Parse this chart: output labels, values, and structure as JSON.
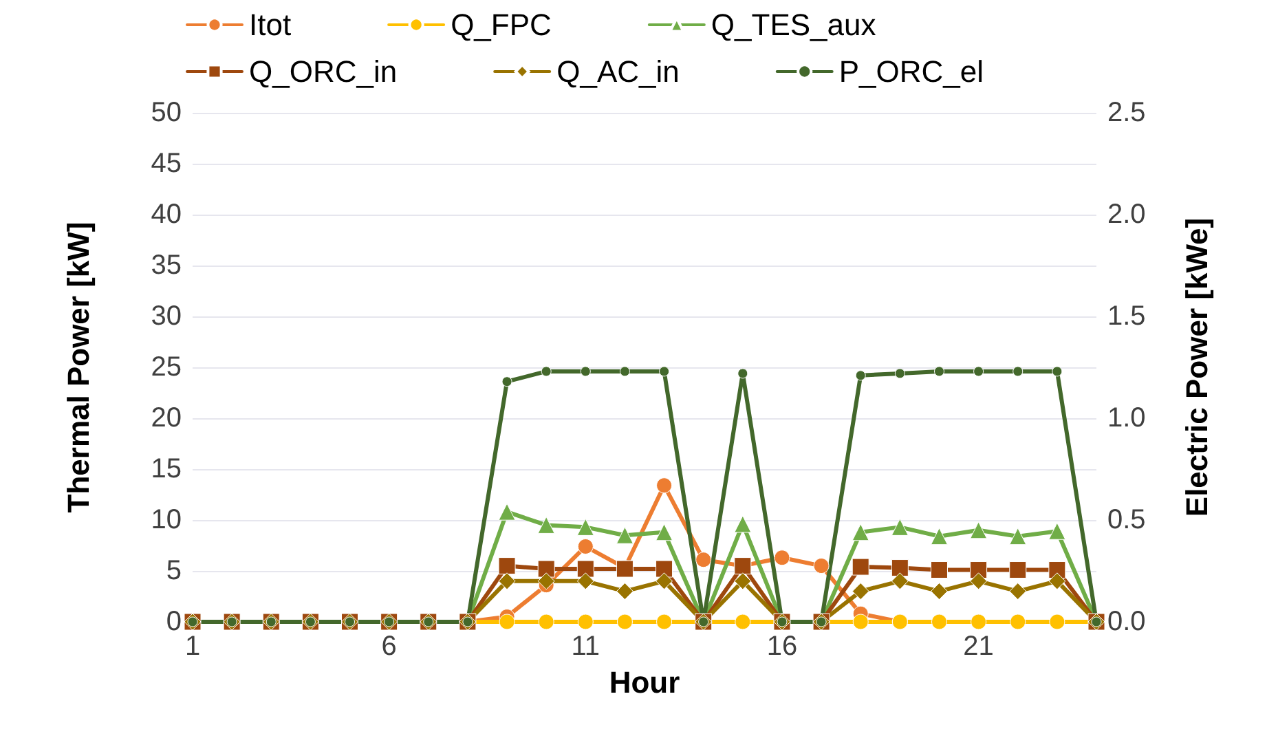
{
  "chart_data": {
    "type": "line",
    "xlabel": "Hour",
    "ylabel": "Thermal Power [kW]",
    "y2label": "Electric Power [kWe]",
    "x": [
      1,
      2,
      3,
      4,
      5,
      6,
      7,
      8,
      9,
      10,
      11,
      12,
      13,
      14,
      15,
      16,
      17,
      18,
      19,
      20,
      21,
      22,
      23,
      24
    ],
    "xlim": [
      1,
      24
    ],
    "xticks": [
      1,
      6,
      11,
      16,
      21
    ],
    "ylim": [
      0,
      50
    ],
    "yticks": [
      0,
      5,
      10,
      15,
      20,
      25,
      30,
      35,
      40,
      45,
      50
    ],
    "y2lim": [
      0,
      2.5
    ],
    "y2ticks": [
      {
        "value": 0,
        "label": "0.0"
      },
      {
        "value": 0.5,
        "label": "0.5"
      },
      {
        "value": 1,
        "label": "1.0"
      },
      {
        "value": 1.5,
        "label": "1.5"
      },
      {
        "value": 2,
        "label": "2.0"
      },
      {
        "value": 2.5,
        "label": "2.5"
      }
    ],
    "grid": "y",
    "legend": "top",
    "series": [
      {
        "name": "Itot",
        "color": "#ed7d31",
        "marker": "circle",
        "values": [
          0,
          0,
          0,
          0,
          0,
          0,
          0,
          0,
          0.5,
          3.6,
          7.4,
          5.3,
          13.4,
          6.1,
          5.5,
          6.3,
          5.5,
          0.8,
          0,
          null,
          null,
          null,
          null,
          null
        ]
      },
      {
        "name": "Q_FPC",
        "color": "#ffc000",
        "marker": "circle",
        "values": [
          null,
          null,
          null,
          null,
          null,
          null,
          0,
          0,
          0,
          0,
          0,
          0,
          0,
          0,
          0,
          0,
          0,
          0,
          0,
          0,
          0,
          0,
          0,
          0
        ]
      },
      {
        "name": "Q_TES_aux",
        "color": "#70ad47",
        "marker": "triangle",
        "values": [
          0,
          0,
          0,
          0,
          0,
          0,
          0,
          0,
          10.8,
          9.5,
          9.3,
          8.5,
          8.8,
          0,
          9.6,
          0,
          0,
          8.8,
          9.3,
          8.4,
          9.0,
          8.4,
          8.9,
          0
        ]
      },
      {
        "name": "Q_ORC_in",
        "color": "#9e480e",
        "marker": "square",
        "values": [
          0,
          0,
          0,
          0,
          0,
          0,
          0,
          0,
          5.5,
          5.2,
          5.2,
          5.2,
          5.2,
          0,
          5.5,
          0,
          0,
          5.4,
          5.3,
          5.1,
          5.1,
          5.1,
          5.1,
          0
        ]
      },
      {
        "name": "Q_AC_in",
        "color": "#997300",
        "marker": "diamond",
        "values": [
          0,
          0,
          0,
          0,
          0,
          0,
          0,
          0,
          4.0,
          4.0,
          4.0,
          3.0,
          4.0,
          0,
          4.0,
          0,
          0,
          3.0,
          4.0,
          3.0,
          4.0,
          3.0,
          4.0,
          0
        ]
      },
      {
        "name": "P_ORC_el",
        "color": "#43682b",
        "marker": "circle",
        "axis": "y2",
        "values": [
          0,
          0,
          0,
          0,
          0,
          0,
          0,
          0,
          1.18,
          1.23,
          1.23,
          1.23,
          1.23,
          0,
          1.22,
          0,
          0,
          1.21,
          1.22,
          1.23,
          1.23,
          1.23,
          1.23,
          0
        ]
      }
    ]
  }
}
